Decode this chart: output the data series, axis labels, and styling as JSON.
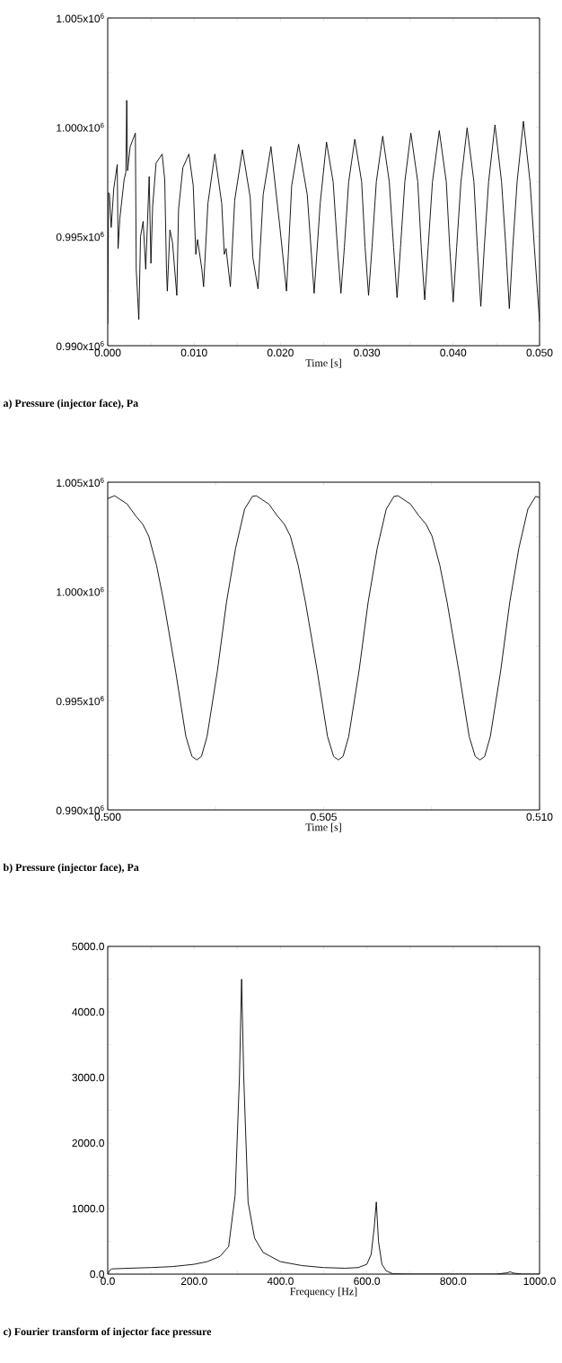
{
  "chart_data": [
    {
      "type": "line",
      "title": "a) Pressure (injector face), Pa",
      "xlabel": "Time [s]",
      "color": "#000000",
      "xlim": [
        0,
        0.05
      ],
      "ylim": [
        990000,
        1005000
      ],
      "xticks": [
        {
          "value": 0,
          "label": "0.000"
        },
        {
          "value": 0.005,
          "label": null
        },
        {
          "value": 0.01,
          "label": "0.010"
        },
        {
          "value": 0.015,
          "label": null
        },
        {
          "value": 0.02,
          "label": "0.020"
        },
        {
          "value": 0.025,
          "label": null
        },
        {
          "value": 0.03,
          "label": "0.030"
        },
        {
          "value": 0.035,
          "label": null
        },
        {
          "value": 0.04,
          "label": "0.040"
        },
        {
          "value": 0.045,
          "label": null
        },
        {
          "value": 0.05,
          "label": "0.050"
        }
      ],
      "yticks": [
        {
          "value": 990000,
          "label": "0.990x10$^{6}$"
        },
        {
          "value": 992500,
          "label": null
        },
        {
          "value": 995000,
          "label": "0.995x10$^{6}$"
        },
        {
          "value": 997500,
          "label": null
        },
        {
          "value": 1000000,
          "label": "1.000x10$^{6}$"
        },
        {
          "value": 1002500,
          "label": null
        },
        {
          "value": 1005000,
          "label": "1.005x10$^{6}$"
        }
      ],
      "x": [
        0,
        0.0001,
        0.0002,
        0.0004,
        0.0007,
        0.0011,
        0.0012,
        0.0014,
        0.0019,
        0.0021,
        0.0022,
        0.0023,
        0.0026,
        0.0032,
        0.0033,
        0.0036,
        0.0038,
        0.0041,
        0.0044,
        0.0048,
        0.005,
        0.0052,
        0.0056,
        0.0063,
        0.0066,
        0.0068,
        0.0069,
        0.0072,
        0.0075,
        0.008,
        0.0082,
        0.0087,
        0.0094,
        0.0099,
        0.0102,
        0.0104,
        0.0109,
        0.0111,
        0.0116,
        0.0124,
        0.0132,
        0.0135,
        0.0137,
        0.0142,
        0.0147,
        0.0156,
        0.0165,
        0.0168,
        0.0174,
        0.018,
        0.0189,
        0.0199,
        0.0207,
        0.0213,
        0.0221,
        0.0231,
        0.0239,
        0.0246,
        0.02533,
        0.0261,
        0.0266,
        0.027,
        0.0274,
        0.0279,
        0.02861,
        0.0294,
        0.0298,
        0.0302,
        0.0306,
        0.0311,
        0.03184,
        0.0326,
        0.0331,
        0.0335,
        0.0339,
        0.0344,
        0.0351,
        0.0359,
        0.0363,
        0.0367,
        0.0371,
        0.0376,
        0.03839,
        0.0392,
        0.0396,
        0.04,
        0.0404,
        0.0409,
        0.04161,
        0.0424,
        0.0428,
        0.0432,
        0.0436,
        0.0441,
        0.04484,
        0.0456,
        0.0461,
        0.0465,
        0.0469,
        0.0474,
        0.04813,
        0.0489,
        0.0494,
        0.05
      ],
      "values": [
        991000,
        997000,
        996920,
        995410,
        997190,
        998290,
        994450,
        995820,
        997600,
        997940,
        1001230,
        998010,
        999110,
        999730,
        993490,
        991200,
        995000,
        995690,
        993500,
        997740,
        993770,
        996370,
        998360,
        998770,
        997600,
        993500,
        992500,
        995300,
        994730,
        992300,
        996230,
        998150,
        998770,
        997330,
        994180,
        994860,
        993500,
        992700,
        996510,
        998770,
        996510,
        994180,
        994450,
        992700,
        996650,
        998970,
        996780,
        994040,
        992600,
        996920,
        999110,
        995550,
        992500,
        997330,
        999220,
        996920,
        992400,
        996500,
        999320,
        997500,
        994500,
        992400,
        994500,
        997500,
        999450,
        997500,
        994500,
        992300,
        994500,
        997500,
        999590,
        997500,
        994500,
        992200,
        994500,
        997500,
        999730,
        997500,
        994500,
        992100,
        994500,
        997500,
        999840,
        997500,
        994500,
        992000,
        994500,
        997500,
        999970,
        997500,
        994500,
        991800,
        994500,
        997500,
        1000110,
        997500,
        994500,
        991700,
        994500,
        997500,
        1000270,
        997500,
        994500,
        991100
      ]
    },
    {
      "type": "line",
      "title": "b) Pressure (injector face), Pa",
      "xlabel": "Time [s]",
      "color": "#000000",
      "xlim": [
        0.5,
        0.51
      ],
      "ylim": [
        990000,
        1005000
      ],
      "xticks": [
        {
          "value": 0.5,
          "label": "0.500"
        },
        {
          "value": 0.5025,
          "label": null
        },
        {
          "value": 0.505,
          "label": "0.505"
        },
        {
          "value": 0.5075,
          "label": null
        },
        {
          "value": 0.51,
          "label": "0.510"
        }
      ],
      "yticks": [
        {
          "value": 990000,
          "label": "0.990x10$^{6}$"
        },
        {
          "value": 992500,
          "label": null
        },
        {
          "value": 995000,
          "label": "0.995x10$^{6}$"
        },
        {
          "value": 997500,
          "label": null
        },
        {
          "value": 1000000,
          "label": "1.000x10$^{6}$"
        },
        {
          "value": 1002500,
          "label": null
        },
        {
          "value": 1005000,
          "label": "1.005x10$^{6}$"
        }
      ],
      "x": [
        0.5,
        0.50016,
        0.50045,
        0.50065,
        0.50081,
        0.50095,
        0.50113,
        0.5013,
        0.50157,
        0.50181,
        0.50195,
        0.50206,
        0.50217,
        0.5023,
        0.50254,
        0.50275,
        0.50296,
        0.50317,
        0.50335,
        0.50344,
        0.50373,
        0.50393,
        0.50409,
        0.50423,
        0.50441,
        0.50458,
        0.50485,
        0.50509,
        0.50523,
        0.50534,
        0.50545,
        0.50558,
        0.50582,
        0.50603,
        0.50624,
        0.50645,
        0.50663,
        0.50672,
        0.50701,
        0.50721,
        0.50737,
        0.50751,
        0.50769,
        0.50786,
        0.50813,
        0.50837,
        0.50851,
        0.50862,
        0.50873,
        0.50886,
        0.5091,
        0.50931,
        0.50952,
        0.50973,
        0.50991,
        0.51
      ],
      "values": [
        1004250,
        1004380,
        1004000,
        1003450,
        1003080,
        1002530,
        1001200,
        999500,
        996370,
        993360,
        992450,
        992290,
        992450,
        993360,
        996370,
        999500,
        1001970,
        1003770,
        1004350,
        1004380,
        1004000,
        1003450,
        1003080,
        1002530,
        1001200,
        999500,
        996370,
        993360,
        992450,
        992290,
        992450,
        993360,
        996370,
        999500,
        1001970,
        1003770,
        1004350,
        1004380,
        1004000,
        1003450,
        1003080,
        1002530,
        1001200,
        999500,
        996370,
        993360,
        992450,
        992290,
        992450,
        993360,
        996370,
        999500,
        1001970,
        1003770,
        1004350,
        1004300
      ]
    },
    {
      "type": "line",
      "title": "c) Fourier transform of injector face pressure",
      "xlabel": "Frequency [Hz]",
      "color": "#000000",
      "xlim": [
        0,
        1000
      ],
      "ylim": [
        0,
        5000
      ],
      "xticks": [
        {
          "value": 0,
          "label": "0.0"
        },
        {
          "value": 100,
          "label": null
        },
        {
          "value": 200,
          "label": "200.0"
        },
        {
          "value": 300,
          "label": null
        },
        {
          "value": 400,
          "label": "400.0"
        },
        {
          "value": 500,
          "label": null
        },
        {
          "value": 600,
          "label": "600.0"
        },
        {
          "value": 700,
          "label": null
        },
        {
          "value": 800,
          "label": "800.0"
        },
        {
          "value": 900,
          "label": null
        },
        {
          "value": 1000,
          "label": "1000.0"
        }
      ],
      "yticks": [
        {
          "value": 0,
          "label": "0.0"
        },
        {
          "value": 500,
          "label": null
        },
        {
          "value": 1000,
          "label": "1000.0"
        },
        {
          "value": 1500,
          "label": null
        },
        {
          "value": 2000,
          "label": "2000.0"
        },
        {
          "value": 2500,
          "label": null
        },
        {
          "value": 3000,
          "label": "3000.0"
        },
        {
          "value": 3500,
          "label": null
        },
        {
          "value": 4000,
          "label": "4000.0"
        },
        {
          "value": 4500,
          "label": null
        },
        {
          "value": 5000,
          "label": "5000.0"
        }
      ],
      "x": [
        0,
        5,
        10,
        50,
        100,
        150,
        200,
        230,
        260,
        280,
        295,
        305,
        310,
        315,
        325,
        340,
        360,
        400,
        450,
        500,
        550,
        580,
        600,
        610,
        617,
        622,
        627,
        635,
        645,
        660,
        700,
        800,
        900,
        925,
        932,
        940,
        960,
        1000
      ],
      "values": [
        0,
        60,
        80,
        90,
        100,
        115,
        150,
        190,
        270,
        420,
        1200,
        3000,
        4500,
        3000,
        1100,
        550,
        330,
        190,
        130,
        100,
        90,
        100,
        150,
        300,
        700,
        1100,
        500,
        150,
        50,
        5,
        0,
        0,
        0,
        20,
        35,
        15,
        0,
        0
      ]
    }
  ]
}
